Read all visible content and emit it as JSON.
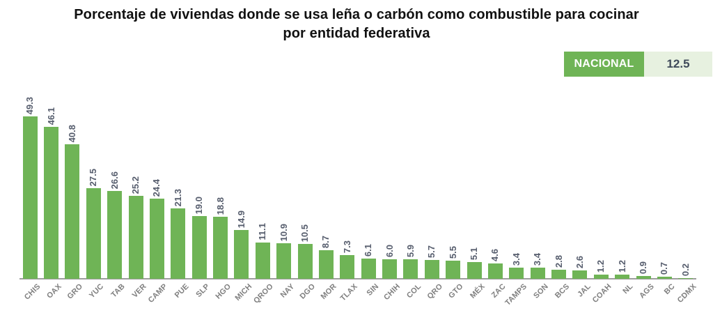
{
  "title": {
    "line1": "Porcentaje de viviendas donde se usa leña o carbón como combustible para cocinar",
    "line2": "por entidad federativa"
  },
  "badge": {
    "label": "NACIONAL",
    "value": "12.5"
  },
  "colors": {
    "bar": "#6fb456",
    "badge_green": "#6fb456",
    "badge_light_bg": "#e7f1e0",
    "badge_value_text": "#3f4a5a",
    "value_label": "#565d6d",
    "category_label": "#7f7f7f",
    "axis_line": "#9e9e9e",
    "title_text": "#111111"
  },
  "chart_data": {
    "type": "bar",
    "title": "Porcentaje de viviendas donde se usa leña o carbón como combustible para cocinar por entidad federativa",
    "categories": [
      "CHIS",
      "OAX",
      "GRO",
      "YUC",
      "TAB",
      "VER",
      "CAMP",
      "PUE",
      "SLP",
      "HGO",
      "MICH",
      "QROO",
      "NAY",
      "DGO",
      "MOR",
      "TLAX",
      "SIN",
      "CHIH",
      "COL",
      "QRO",
      "GTO",
      "MÉX",
      "ZAC",
      "TAMPS",
      "SON",
      "BCS",
      "JAL",
      "COAH",
      "NL",
      "AGS",
      "BC",
      "CDMX"
    ],
    "values": [
      49.3,
      46.1,
      40.8,
      27.5,
      26.6,
      25.2,
      24.4,
      21.3,
      19.0,
      18.8,
      14.9,
      11.1,
      10.9,
      10.5,
      8.7,
      7.3,
      6.1,
      6.0,
      5.9,
      5.7,
      5.5,
      5.1,
      4.6,
      3.4,
      3.4,
      2.8,
      2.6,
      1.2,
      1.2,
      0.9,
      0.7,
      0.2
    ],
    "xlabel": "",
    "ylabel": "",
    "ylim": [
      0,
      50
    ],
    "grid": false,
    "legend": "none",
    "value_labels_shown": true,
    "value_label_rotation": 90,
    "category_label_rotation": 45,
    "national_reference": {
      "label": "NACIONAL",
      "value": 12.5
    }
  }
}
